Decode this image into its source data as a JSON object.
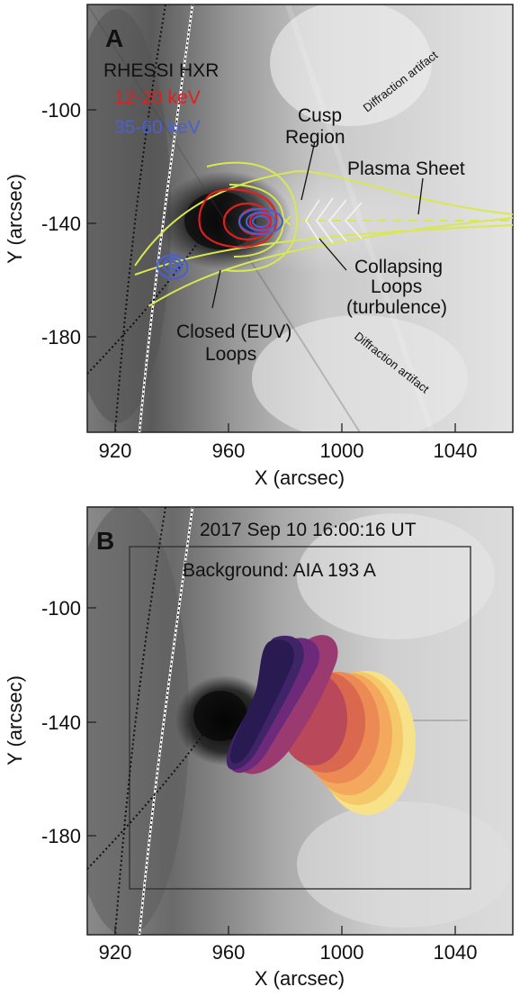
{
  "panels": [
    {
      "letter": "A",
      "legend_title": "RHESSI HXR",
      "legend_low": "12-20 keV",
      "legend_high": "35-60 keV",
      "color_low": "#e02020",
      "color_high": "#4a5fd0",
      "annotations": {
        "cusp_line1": "Cusp",
        "cusp_line2": "Region",
        "plasma_sheet": "Plasma Sheet",
        "collapsing_line1": "Collapsing",
        "collapsing_line2": "Loops",
        "collapsing_line3": "(turbulence)",
        "closed_line1": "Closed (EUV)",
        "closed_line2": "Loops",
        "diffraction_top": "Diffraction artifact",
        "diffraction_bottom": "Diffraction artifact"
      },
      "x_ticks": [
        "920",
        "960",
        "1000",
        "1040"
      ],
      "y_ticks": [
        "-100",
        "-140",
        "-180"
      ],
      "xlabel": "X (arcsec)",
      "ylabel": "Y (arcsec)"
    },
    {
      "letter": "B",
      "date_label": "2017 Sep 10 16:00:16 UT",
      "background_label": "Background: AIA 193 A",
      "x_ticks": [
        "920",
        "960",
        "1000",
        "1040"
      ],
      "y_ticks": [
        "-100",
        "-140",
        "-180"
      ],
      "xlabel": "X (arcsec)",
      "ylabel": "Y (arcsec)"
    }
  ],
  "chart_data": [
    {
      "type": "heatmap",
      "xlabel": "X (arcsec)",
      "ylabel": "Y (arcsec)",
      "xlim": [
        910,
        1060
      ],
      "ylim": [
        -220,
        -65
      ],
      "x_ticks": [
        920,
        960,
        1000,
        1040
      ],
      "y_ticks": [
        -100,
        -140,
        -180
      ],
      "legend": [
        "12-20 keV",
        "35-60 keV"
      ],
      "legend_title": "RHESSI HXR",
      "legend_placement": "top-left"
    },
    {
      "type": "heatmap",
      "xlabel": "X (arcsec)",
      "ylabel": "Y (arcsec)",
      "xlim": [
        910,
        1060
      ],
      "ylim": [
        -220,
        -65
      ],
      "x_ticks": [
        920,
        960,
        1000,
        1040
      ],
      "y_ticks": [
        -100,
        -140,
        -180
      ],
      "title": "2017 Sep 10 16:00:16 UT",
      "subtitle": "Background: AIA 193 A"
    }
  ]
}
